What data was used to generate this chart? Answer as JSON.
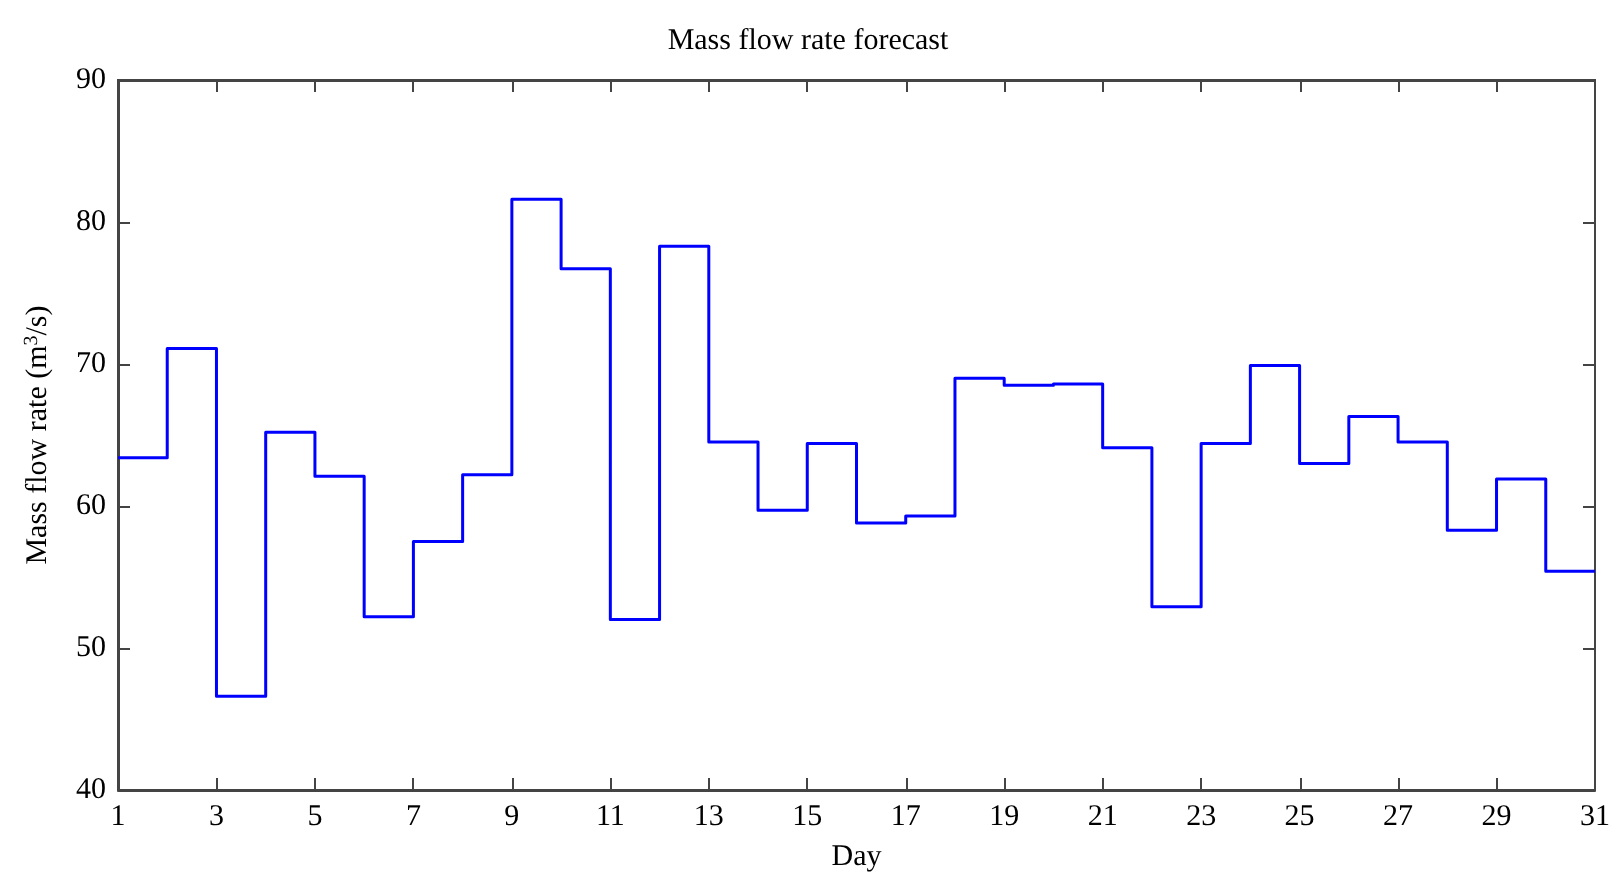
{
  "chart_data": {
    "type": "step",
    "title": "Mass flow rate forecast",
    "xlabel": "Day",
    "ylabel": "Mass flow rate (m$^{3}$/s)",
    "x": [
      1,
      2,
      3,
      4,
      5,
      6,
      7,
      8,
      9,
      10,
      11,
      12,
      13,
      14,
      15,
      16,
      17,
      18,
      19,
      20,
      21,
      22,
      23,
      24,
      25,
      26,
      27,
      28,
      29,
      30,
      31
    ],
    "series": [
      {
        "color": "#0000ff",
        "values": [
          63.4,
          71.1,
          46.6,
          65.2,
          62.1,
          52.2,
          57.5,
          62.2,
          81.6,
          76.7,
          52.0,
          78.3,
          64.5,
          59.7,
          64.4,
          58.8,
          59.3,
          69.0,
          68.5,
          68.6,
          64.1,
          52.9,
          64.4,
          69.9,
          63.0,
          66.3,
          64.5,
          58.3,
          61.9,
          55.4,
          55.4
        ]
      }
    ],
    "xlim": [
      1,
      31
    ],
    "xticks": [
      1,
      3,
      5,
      7,
      9,
      11,
      13,
      15,
      17,
      19,
      21,
      23,
      25,
      27,
      29,
      31
    ],
    "ylim": [
      40,
      90
    ],
    "yticks": [
      40,
      50,
      60,
      70,
      80,
      90
    ],
    "grid": false,
    "marker": "none",
    "line_style": "solid"
  }
}
